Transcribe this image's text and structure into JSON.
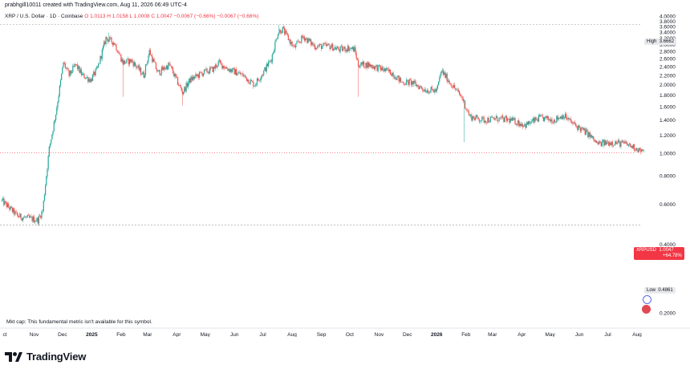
{
  "header": {
    "line1": "prabhgill10011 created with TradingView.com, Aug 11, 2026 06:49 UTC-4",
    "symbol": "XRP / U.S. Dollar · 1D · Coinbase",
    "ohlc": "O 1.0113  H 1.0158  L 1.0008  C 1.0047  −0.0067 (−0.66%)  −0.0067 (−0.66%)"
  },
  "footer": {
    "mkt_cap": "Mkt cap: This fundamental metric isn't available for this symbol.",
    "brand": "TradingView"
  },
  "tags": {
    "high_label": "High",
    "high_value": "3.6662",
    "low_label": "Low",
    "low_value": "0.4861",
    "cur_symbol": "XRPUSD",
    "cur_value": "1.0047",
    "cur_change": "+64.78%"
  },
  "colors": {
    "up": "#26a69a",
    "down": "#ef5350",
    "accent": "#f23645"
  },
  "chart_data": {
    "type": "candlestick",
    "title": "XRP / U.S. Dollar · 1D · Coinbase",
    "scale": "log",
    "ylim": [
      0.2,
      4.0
    ],
    "y_ticks": [
      "4.0000",
      "3.8000",
      "3.6000",
      "3.4000",
      "3.2000",
      "3.0000",
      "2.8000",
      "2.6000",
      "2.4000",
      "2.2000",
      "2.0000",
      "1.8000",
      "1.6000",
      "1.4000",
      "1.2000",
      "1.0000",
      "0.8000",
      "0.6000",
      "0.4000",
      "0.2000"
    ],
    "x_ticks": [
      {
        "label": "ct",
        "date": "2024-10-01",
        "bold": false
      },
      {
        "label": "Nov",
        "date": "2024-11-01",
        "bold": false
      },
      {
        "label": "Dec",
        "date": "2024-12-01",
        "bold": false
      },
      {
        "label": "2025",
        "date": "2025-01-01",
        "bold": true
      },
      {
        "label": "Feb",
        "date": "2025-02-01",
        "bold": false
      },
      {
        "label": "Mar",
        "date": "2025-03-01",
        "bold": false
      },
      {
        "label": "Apr",
        "date": "2025-04-01",
        "bold": false
      },
      {
        "label": "May",
        "date": "2025-05-01",
        "bold": false
      },
      {
        "label": "Jun",
        "date": "2025-06-01",
        "bold": false
      },
      {
        "label": "Jul",
        "date": "2025-07-01",
        "bold": false
      },
      {
        "label": "Aug",
        "date": "2025-08-01",
        "bold": false
      },
      {
        "label": "Sep",
        "date": "2025-09-01",
        "bold": false
      },
      {
        "label": "Oct",
        "date": "2025-10-01",
        "bold": false
      },
      {
        "label": "Nov",
        "date": "2025-11-01",
        "bold": false
      },
      {
        "label": "Dec",
        "date": "2025-12-01",
        "bold": false
      },
      {
        "label": "2026",
        "date": "2026-01-01",
        "bold": true
      },
      {
        "label": "Feb",
        "date": "2026-02-01",
        "bold": false
      },
      {
        "label": "Mar",
        "date": "2026-03-01",
        "bold": false
      },
      {
        "label": "Apr",
        "date": "2026-04-01",
        "bold": false
      },
      {
        "label": "May",
        "date": "2026-05-01",
        "bold": false
      },
      {
        "label": "Jun",
        "date": "2026-06-01",
        "bold": false
      },
      {
        "label": "Jul",
        "date": "2026-07-01",
        "bold": false
      },
      {
        "label": "Aug",
        "date": "2026-08-01",
        "bold": false
      }
    ],
    "high_level": 3.6662,
    "low_level": 0.4861,
    "last_close": 1.0047,
    "close_series": [
      {
        "date": "2024-09-28",
        "close": 0.62
      },
      {
        "date": "2024-10-15",
        "close": 0.53
      },
      {
        "date": "2024-11-05",
        "close": 0.51
      },
      {
        "date": "2024-11-10",
        "close": 0.56
      },
      {
        "date": "2024-11-17",
        "close": 1.05
      },
      {
        "date": "2024-11-24",
        "close": 1.5
      },
      {
        "date": "2024-12-02",
        "close": 2.5
      },
      {
        "date": "2024-12-08",
        "close": 2.2
      },
      {
        "date": "2024-12-15",
        "close": 2.45
      },
      {
        "date": "2024-12-22",
        "close": 2.2
      },
      {
        "date": "2024-12-31",
        "close": 2.1
      },
      {
        "date": "2025-01-07",
        "close": 2.35
      },
      {
        "date": "2025-01-16",
        "close": 3.2
      },
      {
        "date": "2025-01-25",
        "close": 3.05
      },
      {
        "date": "2025-02-03",
        "close": 2.5
      },
      {
        "date": "2025-02-12",
        "close": 2.55
      },
      {
        "date": "2025-02-25",
        "close": 2.2
      },
      {
        "date": "2025-03-03",
        "close": 2.8
      },
      {
        "date": "2025-03-12",
        "close": 2.25
      },
      {
        "date": "2025-03-24",
        "close": 2.45
      },
      {
        "date": "2025-04-07",
        "close": 1.85
      },
      {
        "date": "2025-04-15",
        "close": 2.1
      },
      {
        "date": "2025-04-28",
        "close": 2.25
      },
      {
        "date": "2025-05-10",
        "close": 2.35
      },
      {
        "date": "2025-05-15",
        "close": 2.5
      },
      {
        "date": "2025-05-25",
        "close": 2.35
      },
      {
        "date": "2025-06-10",
        "close": 2.2
      },
      {
        "date": "2025-06-22",
        "close": 2.0
      },
      {
        "date": "2025-07-01",
        "close": 2.25
      },
      {
        "date": "2025-07-10",
        "close": 2.6
      },
      {
        "date": "2025-07-17",
        "close": 3.4
      },
      {
        "date": "2025-07-22",
        "close": 3.5
      },
      {
        "date": "2025-08-03",
        "close": 2.9
      },
      {
        "date": "2025-08-13",
        "close": 3.25
      },
      {
        "date": "2025-08-25",
        "close": 2.95
      },
      {
        "date": "2025-09-10",
        "close": 2.95
      },
      {
        "date": "2025-09-20",
        "close": 2.85
      },
      {
        "date": "2025-09-30",
        "close": 2.9
      },
      {
        "date": "2025-10-06",
        "close": 2.85
      },
      {
        "date": "2025-10-10",
        "close": 2.45
      },
      {
        "date": "2025-10-20",
        "close": 2.45
      },
      {
        "date": "2025-11-03",
        "close": 2.35
      },
      {
        "date": "2025-11-15",
        "close": 2.25
      },
      {
        "date": "2025-11-25",
        "close": 2.05
      },
      {
        "date": "2025-12-05",
        "close": 2.05
      },
      {
        "date": "2025-12-20",
        "close": 1.9
      },
      {
        "date": "2026-01-01",
        "close": 1.88
      },
      {
        "date": "2026-01-06",
        "close": 2.3
      },
      {
        "date": "2026-01-15",
        "close": 2.05
      },
      {
        "date": "2026-01-28",
        "close": 1.75
      },
      {
        "date": "2026-02-05",
        "close": 1.45
      },
      {
        "date": "2026-02-20",
        "close": 1.4
      },
      {
        "date": "2026-03-05",
        "close": 1.42
      },
      {
        "date": "2026-03-20",
        "close": 1.4
      },
      {
        "date": "2026-04-05",
        "close": 1.33
      },
      {
        "date": "2026-04-20",
        "close": 1.43
      },
      {
        "date": "2026-05-05",
        "close": 1.4
      },
      {
        "date": "2026-05-15",
        "close": 1.47
      },
      {
        "date": "2026-05-25",
        "close": 1.35
      },
      {
        "date": "2026-06-10",
        "close": 1.22
      },
      {
        "date": "2026-06-20",
        "close": 1.1
      },
      {
        "date": "2026-07-05",
        "close": 1.12
      },
      {
        "date": "2026-07-20",
        "close": 1.1
      },
      {
        "date": "2026-08-01",
        "close": 1.05
      },
      {
        "date": "2026-08-08",
        "close": 1.0047
      }
    ]
  }
}
